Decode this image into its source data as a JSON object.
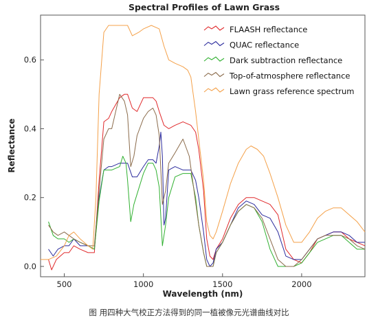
{
  "caption": "图 用四种大气校正方法得到的同一植被像元光谱曲线对比",
  "chart_data": {
    "type": "line",
    "title": "Spectral Profiles of Lawn Grass",
    "xlabel": "Wavelength (nm)",
    "ylabel": "Reflectance",
    "xlim": [
      350,
      2400
    ],
    "ylim": [
      -0.03,
      0.73
    ],
    "xticks": [
      500,
      1000,
      1500,
      2000
    ],
    "yticks": [
      0.0,
      0.2,
      0.4,
      0.6
    ],
    "ytick_labels": [
      "0.0",
      "0.2",
      "0.4",
      "0.6"
    ],
    "grid": false,
    "legend_position": "top-right",
    "series": [
      {
        "name": "FLAASH reflectance",
        "color": "#e0282a",
        "points": [
          [
            400,
            0.02
          ],
          [
            420,
            -0.01
          ],
          [
            450,
            0.02
          ],
          [
            500,
            0.04
          ],
          [
            530,
            0.04
          ],
          [
            560,
            0.06
          ],
          [
            600,
            0.05
          ],
          [
            650,
            0.04
          ],
          [
            690,
            0.04
          ],
          [
            720,
            0.25
          ],
          [
            750,
            0.42
          ],
          [
            780,
            0.43
          ],
          [
            800,
            0.45
          ],
          [
            850,
            0.49
          ],
          [
            880,
            0.5
          ],
          [
            900,
            0.5
          ],
          [
            930,
            0.46
          ],
          [
            960,
            0.45
          ],
          [
            1000,
            0.49
          ],
          [
            1030,
            0.49
          ],
          [
            1060,
            0.49
          ],
          [
            1080,
            0.48
          ],
          [
            1100,
            0.45
          ],
          [
            1130,
            0.41
          ],
          [
            1160,
            0.4
          ],
          [
            1200,
            0.41
          ],
          [
            1250,
            0.42
          ],
          [
            1300,
            0.41
          ],
          [
            1330,
            0.39
          ],
          [
            1350,
            0.34
          ],
          [
            1380,
            0.22
          ],
          [
            1400,
            0.08
          ],
          [
            1420,
            0.03
          ],
          [
            1440,
            0.02
          ],
          [
            1460,
            0.05
          ],
          [
            1500,
            0.08
          ],
          [
            1550,
            0.14
          ],
          [
            1600,
            0.18
          ],
          [
            1650,
            0.2
          ],
          [
            1700,
            0.2
          ],
          [
            1750,
            0.19
          ],
          [
            1800,
            0.18
          ],
          [
            1850,
            0.15
          ],
          [
            1900,
            0.05
          ],
          [
            1950,
            0.02
          ],
          [
            2000,
            0.01
          ],
          [
            2050,
            0.04
          ],
          [
            2100,
            0.08
          ],
          [
            2150,
            0.09
          ],
          [
            2200,
            0.1
          ],
          [
            2250,
            0.1
          ],
          [
            2300,
            0.08
          ],
          [
            2350,
            0.07
          ],
          [
            2400,
            0.06
          ]
        ]
      },
      {
        "name": "QUAC reflectance",
        "color": "#2a2a9c",
        "points": [
          [
            400,
            0.05
          ],
          [
            430,
            0.03
          ],
          [
            460,
            0.05
          ],
          [
            500,
            0.06
          ],
          [
            530,
            0.06
          ],
          [
            560,
            0.08
          ],
          [
            600,
            0.06
          ],
          [
            650,
            0.06
          ],
          [
            690,
            0.05
          ],
          [
            720,
            0.2
          ],
          [
            750,
            0.28
          ],
          [
            780,
            0.29
          ],
          [
            800,
            0.29
          ],
          [
            850,
            0.3
          ],
          [
            880,
            0.3
          ],
          [
            900,
            0.3
          ],
          [
            930,
            0.26
          ],
          [
            960,
            0.26
          ],
          [
            1000,
            0.29
          ],
          [
            1030,
            0.31
          ],
          [
            1060,
            0.31
          ],
          [
            1080,
            0.3
          ],
          [
            1100,
            0.35
          ],
          [
            1110,
            0.39
          ],
          [
            1120,
            0.32
          ],
          [
            1130,
            0.12
          ],
          [
            1140,
            0.14
          ],
          [
            1160,
            0.28
          ],
          [
            1200,
            0.29
          ],
          [
            1250,
            0.28
          ],
          [
            1300,
            0.28
          ],
          [
            1330,
            0.25
          ],
          [
            1350,
            0.2
          ],
          [
            1380,
            0.1
          ],
          [
            1400,
            0.02
          ],
          [
            1420,
            0.0
          ],
          [
            1440,
            0.01
          ],
          [
            1460,
            0.05
          ],
          [
            1500,
            0.07
          ],
          [
            1550,
            0.12
          ],
          [
            1600,
            0.17
          ],
          [
            1650,
            0.19
          ],
          [
            1700,
            0.18
          ],
          [
            1750,
            0.15
          ],
          [
            1800,
            0.14
          ],
          [
            1850,
            0.1
          ],
          [
            1900,
            0.03
          ],
          [
            1950,
            0.02
          ],
          [
            2000,
            0.02
          ],
          [
            2050,
            0.05
          ],
          [
            2100,
            0.08
          ],
          [
            2150,
            0.09
          ],
          [
            2200,
            0.1
          ],
          [
            2250,
            0.1
          ],
          [
            2300,
            0.09
          ],
          [
            2350,
            0.07
          ],
          [
            2400,
            0.07
          ]
        ]
      },
      {
        "name": "Dark subtraction reflectance",
        "color": "#2fb02f",
        "points": [
          [
            400,
            0.13
          ],
          [
            430,
            0.09
          ],
          [
            460,
            0.08
          ],
          [
            500,
            0.08
          ],
          [
            530,
            0.07
          ],
          [
            560,
            0.08
          ],
          [
            600,
            0.07
          ],
          [
            650,
            0.06
          ],
          [
            690,
            0.05
          ],
          [
            720,
            0.19
          ],
          [
            750,
            0.28
          ],
          [
            780,
            0.28
          ],
          [
            800,
            0.28
          ],
          [
            850,
            0.29
          ],
          [
            870,
            0.32
          ],
          [
            890,
            0.3
          ],
          [
            900,
            0.25
          ],
          [
            920,
            0.13
          ],
          [
            940,
            0.18
          ],
          [
            960,
            0.21
          ],
          [
            1000,
            0.27
          ],
          [
            1030,
            0.3
          ],
          [
            1060,
            0.3
          ],
          [
            1080,
            0.28
          ],
          [
            1100,
            0.23
          ],
          [
            1120,
            0.06
          ],
          [
            1140,
            0.12
          ],
          [
            1160,
            0.2
          ],
          [
            1200,
            0.26
          ],
          [
            1250,
            0.27
          ],
          [
            1300,
            0.27
          ],
          [
            1330,
            0.2
          ],
          [
            1350,
            0.12
          ],
          [
            1380,
            0.04
          ],
          [
            1400,
            0.0
          ],
          [
            1420,
            0.0
          ],
          [
            1440,
            0.0
          ],
          [
            1460,
            0.04
          ],
          [
            1500,
            0.07
          ],
          [
            1550,
            0.12
          ],
          [
            1600,
            0.16
          ],
          [
            1650,
            0.18
          ],
          [
            1700,
            0.17
          ],
          [
            1750,
            0.13
          ],
          [
            1800,
            0.05
          ],
          [
            1850,
            0.0
          ],
          [
            1900,
            0.0
          ],
          [
            1950,
            0.0
          ],
          [
            2000,
            0.01
          ],
          [
            2050,
            0.04
          ],
          [
            2100,
            0.07
          ],
          [
            2150,
            0.08
          ],
          [
            2200,
            0.09
          ],
          [
            2250,
            0.09
          ],
          [
            2300,
            0.07
          ],
          [
            2350,
            0.05
          ],
          [
            2400,
            0.05
          ]
        ]
      },
      {
        "name": "Top-of-atmosphere reflectance",
        "color": "#8a6a4a",
        "points": [
          [
            400,
            0.12
          ],
          [
            430,
            0.1
          ],
          [
            460,
            0.09
          ],
          [
            500,
            0.1
          ],
          [
            530,
            0.09
          ],
          [
            560,
            0.08
          ],
          [
            600,
            0.07
          ],
          [
            650,
            0.06
          ],
          [
            690,
            0.06
          ],
          [
            720,
            0.22
          ],
          [
            750,
            0.37
          ],
          [
            780,
            0.4
          ],
          [
            800,
            0.4
          ],
          [
            850,
            0.5
          ],
          [
            880,
            0.48
          ],
          [
            900,
            0.44
          ],
          [
            920,
            0.29
          ],
          [
            940,
            0.32
          ],
          [
            960,
            0.38
          ],
          [
            1000,
            0.43
          ],
          [
            1030,
            0.45
          ],
          [
            1060,
            0.46
          ],
          [
            1080,
            0.44
          ],
          [
            1100,
            0.38
          ],
          [
            1120,
            0.18
          ],
          [
            1140,
            0.22
          ],
          [
            1160,
            0.3
          ],
          [
            1200,
            0.33
          ],
          [
            1250,
            0.37
          ],
          [
            1290,
            0.32
          ],
          [
            1320,
            0.22
          ],
          [
            1350,
            0.12
          ],
          [
            1380,
            0.04
          ],
          [
            1400,
            0.0
          ],
          [
            1420,
            0.0
          ],
          [
            1440,
            0.0
          ],
          [
            1460,
            0.04
          ],
          [
            1500,
            0.07
          ],
          [
            1550,
            0.12
          ],
          [
            1600,
            0.16
          ],
          [
            1650,
            0.18
          ],
          [
            1700,
            0.17
          ],
          [
            1750,
            0.14
          ],
          [
            1800,
            0.08
          ],
          [
            1850,
            0.02
          ],
          [
            1900,
            0.0
          ],
          [
            1950,
            0.0
          ],
          [
            2000,
            0.02
          ],
          [
            2050,
            0.05
          ],
          [
            2100,
            0.08
          ],
          [
            2150,
            0.09
          ],
          [
            2200,
            0.09
          ],
          [
            2250,
            0.09
          ],
          [
            2300,
            0.08
          ],
          [
            2350,
            0.06
          ],
          [
            2400,
            0.05
          ]
        ]
      },
      {
        "name": "Lawn grass reference spectrum",
        "color": "#f4a048",
        "points": [
          [
            350,
            0.02
          ],
          [
            400,
            0.02
          ],
          [
            450,
            0.03
          ],
          [
            500,
            0.06
          ],
          [
            530,
            0.09
          ],
          [
            560,
            0.1
          ],
          [
            600,
            0.08
          ],
          [
            650,
            0.06
          ],
          [
            680,
            0.05
          ],
          [
            700,
            0.2
          ],
          [
            720,
            0.5
          ],
          [
            750,
            0.68
          ],
          [
            780,
            0.7
          ],
          [
            800,
            0.7
          ],
          [
            850,
            0.7
          ],
          [
            900,
            0.7
          ],
          [
            930,
            0.67
          ],
          [
            970,
            0.68
          ],
          [
            1000,
            0.69
          ],
          [
            1050,
            0.7
          ],
          [
            1100,
            0.69
          ],
          [
            1130,
            0.64
          ],
          [
            1160,
            0.6
          ],
          [
            1200,
            0.59
          ],
          [
            1250,
            0.58
          ],
          [
            1280,
            0.57
          ],
          [
            1300,
            0.55
          ],
          [
            1330,
            0.45
          ],
          [
            1350,
            0.37
          ],
          [
            1380,
            0.25
          ],
          [
            1400,
            0.13
          ],
          [
            1420,
            0.09
          ],
          [
            1440,
            0.08
          ],
          [
            1460,
            0.1
          ],
          [
            1500,
            0.16
          ],
          [
            1550,
            0.24
          ],
          [
            1600,
            0.3
          ],
          [
            1650,
            0.34
          ],
          [
            1680,
            0.35
          ],
          [
            1720,
            0.34
          ],
          [
            1760,
            0.32
          ],
          [
            1800,
            0.27
          ],
          [
            1850,
            0.2
          ],
          [
            1900,
            0.12
          ],
          [
            1950,
            0.07
          ],
          [
            2000,
            0.07
          ],
          [
            2050,
            0.1
          ],
          [
            2100,
            0.14
          ],
          [
            2150,
            0.16
          ],
          [
            2200,
            0.17
          ],
          [
            2250,
            0.17
          ],
          [
            2300,
            0.15
          ],
          [
            2350,
            0.13
          ],
          [
            2400,
            0.1
          ]
        ]
      }
    ]
  }
}
